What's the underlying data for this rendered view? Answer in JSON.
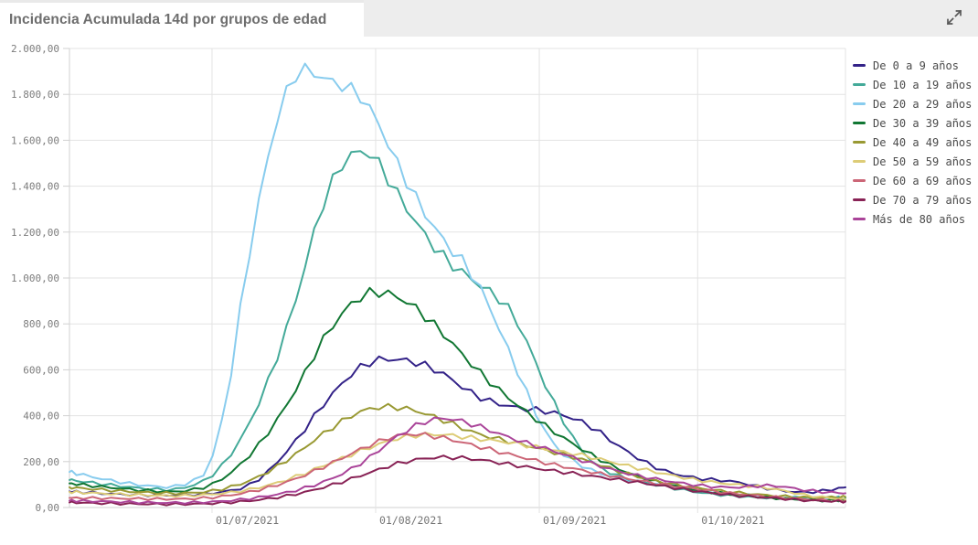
{
  "window": {
    "title": "Incidencia Acumulada 14d por grupos de edad",
    "controls": {
      "expand_icon": "expand-icon"
    }
  },
  "colors": {
    "page_background": "#ededed",
    "card_background": "#ffffff",
    "grid": "#e3e3e3",
    "axis": "#d1d1d1",
    "tick_text": "#7c7c7c",
    "legend_text": "#4a4a4a",
    "title_text": "#6d6d6d",
    "icon": "#595959"
  },
  "chart_data": {
    "type": "line",
    "title": "Incidencia Acumulada 14d por grupos de edad",
    "xlabel": "",
    "ylabel": "",
    "ylim": [
      0,
      2000
    ],
    "grid": true,
    "legend_position": "right",
    "x_span_days": 147,
    "x_dates": [
      "04/06/2021",
      "11/06/2021",
      "18/06/2021",
      "25/06/2021",
      "02/07/2021",
      "09/07/2021",
      "16/07/2021",
      "23/07/2021",
      "30/07/2021",
      "06/08/2021",
      "13/08/2021",
      "20/08/2021",
      "27/08/2021",
      "03/09/2021",
      "10/09/2021",
      "17/09/2021",
      "24/09/2021",
      "01/10/2021",
      "08/10/2021",
      "15/10/2021",
      "22/10/2021",
      "29/10/2021"
    ],
    "x_ticks": [
      {
        "label": "01/07/2021",
        "day": 27
      },
      {
        "label": "01/08/2021",
        "day": 58
      },
      {
        "label": "01/09/2021",
        "day": 89
      },
      {
        "label": "01/10/2021",
        "day": 119
      }
    ],
    "y_ticks": [
      {
        "label": "0,00",
        "value": 0
      },
      {
        "label": "200,00",
        "value": 200
      },
      {
        "label": "400,00",
        "value": 400
      },
      {
        "label": "600,00",
        "value": 600
      },
      {
        "label": "800,00",
        "value": 800
      },
      {
        "label": "1.000,00",
        "value": 1000
      },
      {
        "label": "1.200,00",
        "value": 1200
      },
      {
        "label": "1.400,00",
        "value": 1400
      },
      {
        "label": "1.600,00",
        "value": 1600
      },
      {
        "label": "1.800,00",
        "value": 1800
      },
      {
        "label": "2.000,00",
        "value": 2000
      }
    ],
    "series": [
      {
        "name": "De 0 a 9 años",
        "color": "#332288",
        "values": [
          70,
          60,
          54,
          52,
          62,
          95,
          260,
          480,
          640,
          650,
          600,
          480,
          435,
          420,
          370,
          250,
          160,
          125,
          115,
          78,
          62,
          88
        ]
      },
      {
        "name": "De 10 a 19 años",
        "color": "#44AA99",
        "values": [
          120,
          100,
          82,
          74,
          140,
          390,
          820,
          1430,
          1600,
          1330,
          1100,
          980,
          870,
          480,
          200,
          125,
          95,
          65,
          50,
          40,
          45,
          42
        ]
      },
      {
        "name": "De 20 a 29 años",
        "color": "#88CCEE",
        "values": [
          155,
          120,
          95,
          85,
          175,
          1280,
          1940,
          1860,
          1800,
          1450,
          1180,
          1010,
          640,
          270,
          165,
          120,
          98,
          75,
          58,
          45,
          38,
          35
        ]
      },
      {
        "name": "De 30 a 39 años",
        "color": "#117733",
        "values": [
          105,
          88,
          74,
          66,
          100,
          240,
          470,
          780,
          950,
          920,
          780,
          600,
          460,
          340,
          240,
          155,
          105,
          75,
          55,
          42,
          32,
          30
        ]
      },
      {
        "name": "De 40 a 49 años",
        "color": "#999933",
        "values": [
          88,
          76,
          66,
          60,
          72,
          120,
          215,
          340,
          435,
          440,
          390,
          320,
          285,
          245,
          205,
          150,
          110,
          85,
          65,
          52,
          42,
          46
        ]
      },
      {
        "name": "De 50 a 59 años",
        "color": "#DDCC77",
        "values": [
          68,
          60,
          54,
          50,
          58,
          80,
          125,
          190,
          255,
          310,
          322,
          300,
          282,
          252,
          225,
          185,
          150,
          118,
          100,
          85,
          50,
          35
        ]
      },
      {
        "name": "De 60 a 69 años",
        "color": "#CC6677",
        "values": [
          42,
          40,
          38,
          36,
          44,
          70,
          115,
          185,
          265,
          325,
          310,
          268,
          228,
          190,
          158,
          128,
          102,
          80,
          60,
          46,
          34,
          28
        ]
      },
      {
        "name": "De 70 a 79 años",
        "color": "#882255",
        "values": [
          22,
          18,
          15,
          14,
          18,
          30,
          52,
          92,
          145,
          200,
          222,
          212,
          185,
          162,
          140,
          118,
          95,
          70,
          52,
          42,
          30,
          26
        ]
      },
      {
        "name": "Más de 80 años",
        "color": "#AA4499",
        "values": [
          30,
          26,
          22,
          20,
          25,
          40,
          68,
          115,
          200,
          330,
          400,
          360,
          298,
          252,
          198,
          150,
          120,
          95,
          85,
          100,
          72,
          62
        ]
      }
    ]
  }
}
